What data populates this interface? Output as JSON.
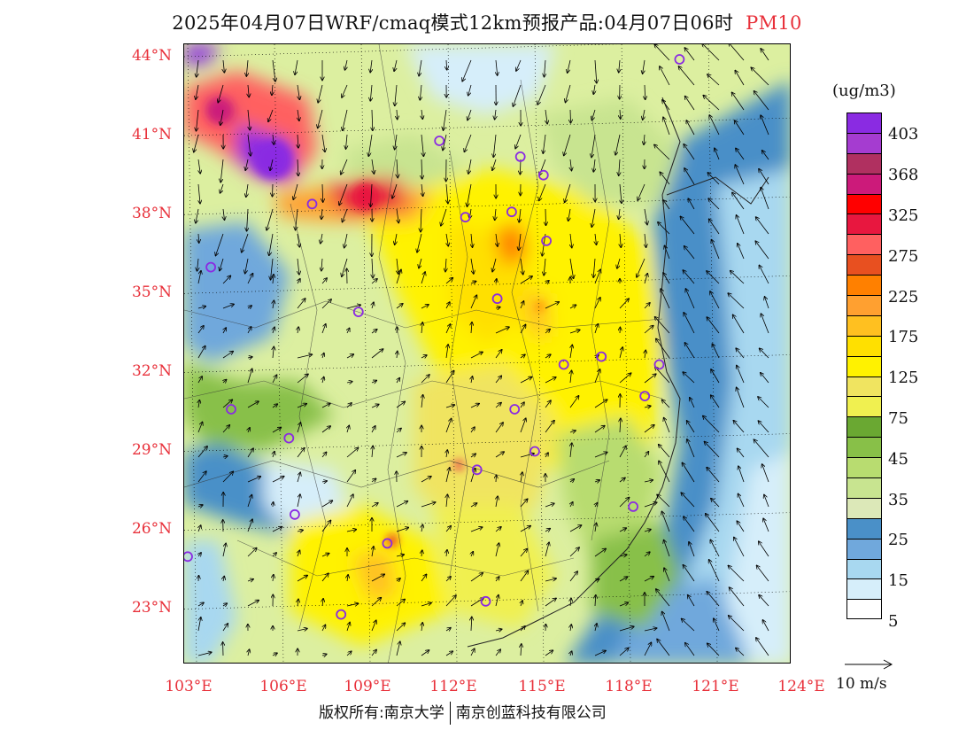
{
  "title": {
    "main": "2025年04月07日WRF/cmaq模式12km预报产品:04月07日06时",
    "variable": "PM10"
  },
  "map": {
    "lat_labels": [
      "44°N",
      "41°N",
      "38°N",
      "35°N",
      "32°N",
      "29°N",
      "26°N",
      "23°N"
    ],
    "lon_labels": [
      "103°E",
      "106°E",
      "109°E",
      "112°E",
      "115°E",
      "118°E",
      "121°E",
      "124°E"
    ],
    "stations": [
      {
        "lon": 120.0,
        "lat": 43.9
      },
      {
        "lon": 111.7,
        "lat": 40.8
      },
      {
        "lon": 114.5,
        "lat": 40.2
      },
      {
        "lon": 115.3,
        "lat": 39.5
      },
      {
        "lon": 107.3,
        "lat": 38.4
      },
      {
        "lon": 112.6,
        "lat": 37.9
      },
      {
        "lon": 114.2,
        "lat": 38.1
      },
      {
        "lon": 103.8,
        "lat": 36.0
      },
      {
        "lon": 115.4,
        "lat": 37.0
      },
      {
        "lon": 108.9,
        "lat": 34.3
      },
      {
        "lon": 113.7,
        "lat": 34.8
      },
      {
        "lon": 116.0,
        "lat": 32.3
      },
      {
        "lon": 117.3,
        "lat": 32.6
      },
      {
        "lon": 119.3,
        "lat": 32.3
      },
      {
        "lon": 118.8,
        "lat": 31.1
      },
      {
        "lon": 104.5,
        "lat": 30.6
      },
      {
        "lon": 114.3,
        "lat": 30.6
      },
      {
        "lon": 106.5,
        "lat": 29.5
      },
      {
        "lon": 115.0,
        "lat": 29.0
      },
      {
        "lon": 113.0,
        "lat": 28.3
      },
      {
        "lon": 106.7,
        "lat": 26.6
      },
      {
        "lon": 118.4,
        "lat": 26.9
      },
      {
        "lon": 103.0,
        "lat": 25.0
      },
      {
        "lon": 109.9,
        "lat": 25.5
      },
      {
        "lon": 113.3,
        "lat": 23.3
      },
      {
        "lon": 108.3,
        "lat": 22.8
      }
    ]
  },
  "colorbar": {
    "unit": "(ug/m3)",
    "labels": [
      "403",
      "368",
      "325",
      "275",
      "225",
      "175",
      "125",
      "75",
      "45",
      "35",
      "25",
      "15",
      "5"
    ],
    "colors": [
      "#8a2be2",
      "#a53cd0",
      "#b03060",
      "#cc1a7a",
      "#ff0000",
      "#e8173f",
      "#ff6060",
      "#e85020",
      "#ff8000",
      "#ffa030",
      "#ffc020",
      "#ffe000",
      "#fff200",
      "#f0e460",
      "#f0f050",
      "#6aa832",
      "#88c048",
      "#b8dc70",
      "#c8e490",
      "#dce8b8",
      "#4a90c8",
      "#70a8dc",
      "#a8d8f0",
      "#d6eefa",
      "#ffffff"
    ]
  },
  "vector_key": {
    "label": "10 m/s"
  },
  "footer": {
    "copyright": "版权所有:南京大学",
    "company": "南京创蓝科技有限公司"
  }
}
